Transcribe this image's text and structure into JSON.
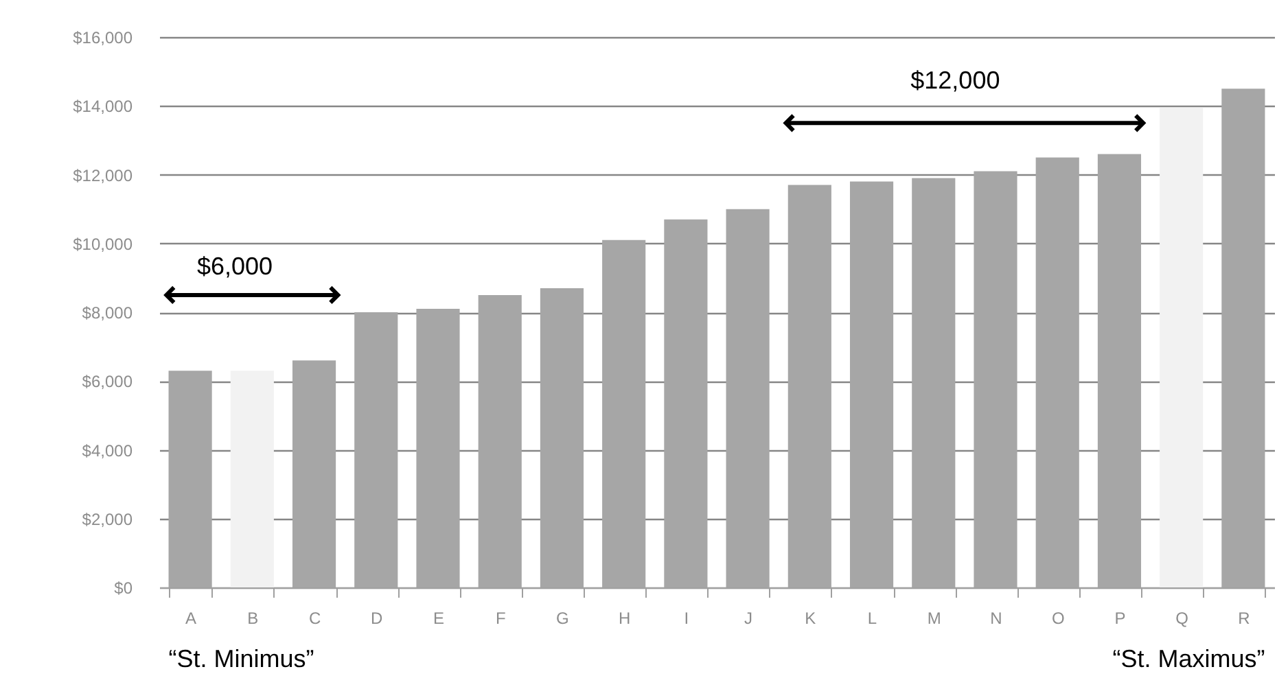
{
  "chart_data": {
    "type": "bar",
    "categories": [
      "A",
      "B",
      "C",
      "D",
      "E",
      "F",
      "G",
      "H",
      "I",
      "J",
      "K",
      "L",
      "M",
      "N",
      "O",
      "P",
      "Q",
      "R"
    ],
    "values": [
      6300,
      6300,
      6600,
      8000,
      8100,
      8500,
      8700,
      10100,
      10700,
      11000,
      11700,
      11800,
      11900,
      12100,
      12500,
      12600,
      13950,
      14500
    ],
    "colors": [
      "#a6a6a6",
      "#f2f2f2",
      "#a6a6a6",
      "#a6a6a6",
      "#a6a6a6",
      "#a6a6a6",
      "#a6a6a6",
      "#a6a6a6",
      "#a6a6a6",
      "#a6a6a6",
      "#a6a6a6",
      "#a6a6a6",
      "#a6a6a6",
      "#a6a6a6",
      "#a6a6a6",
      "#a6a6a6",
      "#f2f2f2",
      "#a6a6a6"
    ],
    "ylim": [
      0,
      16000
    ],
    "yticks": [
      {
        "value": 0,
        "label": "$0"
      },
      {
        "value": 2000,
        "label": "$2,000"
      },
      {
        "value": 4000,
        "label": "$4,000"
      },
      {
        "value": 6000,
        "label": "$6,000"
      },
      {
        "value": 8000,
        "label": "$8,000"
      },
      {
        "value": 10000,
        "label": "$10,000"
      },
      {
        "value": 12000,
        "label": "$12,000"
      },
      {
        "value": 14000,
        "label": "$14,000"
      },
      {
        "value": 16000,
        "label": "$16,000"
      }
    ],
    "grid": "y",
    "annotations": [
      "$6,000",
      "$12,000",
      "“St. Minimus”",
      "“St. Maximus”"
    ]
  }
}
